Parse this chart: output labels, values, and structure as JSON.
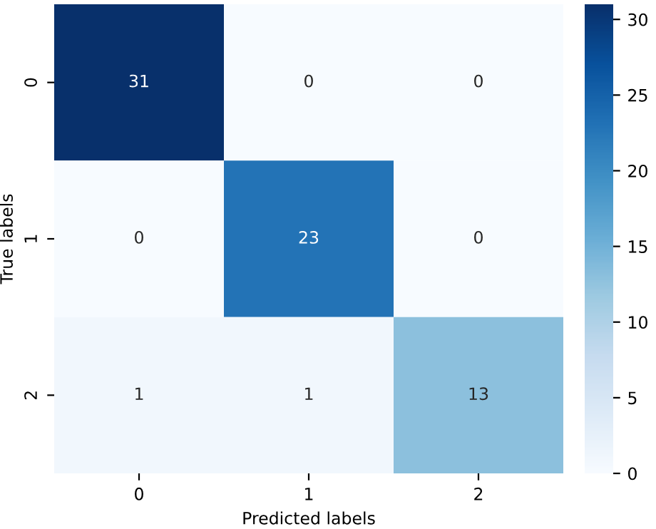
{
  "chart_data": {
    "type": "heatmap",
    "xlabel": "Predicted labels",
    "ylabel": "True labels",
    "categories": [
      "0",
      "1",
      "2"
    ],
    "y_categories": [
      "0",
      "1",
      "2"
    ],
    "cells": [
      [
        31,
        0,
        0
      ],
      [
        0,
        23,
        0
      ],
      [
        1,
        1,
        13
      ]
    ],
    "data_labels": true,
    "clim": [
      0,
      31
    ],
    "cticks": [
      0,
      5,
      10,
      15,
      20,
      25,
      30
    ]
  }
}
